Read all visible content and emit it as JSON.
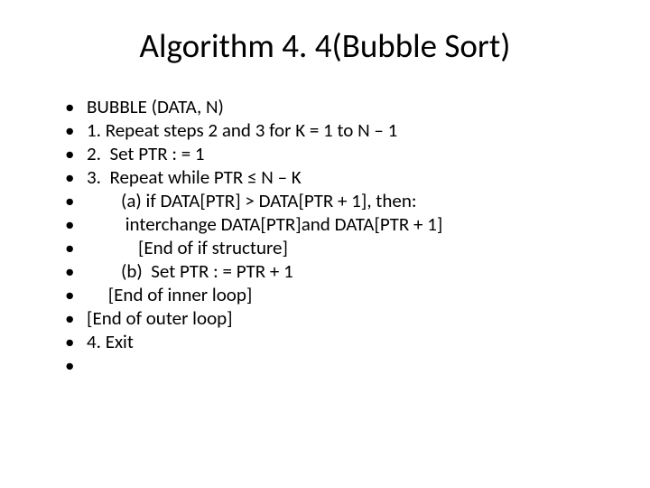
{
  "title": "Algorithm 4. 4(Bubble Sort)",
  "title_fontsize": 37,
  "body_fontsize": 21,
  "background_color": "#ffffff",
  "text_color": "#000000",
  "bullets": [
    "BUBBLE (DATA, N)",
    "1. Repeat steps 2 and 3 for K = 1 to N – 1",
    "2.  Set PTR : = 1",
    "3.  Repeat while PTR ≤ N – K",
    "        (a) if DATA[PTR] > DATA[PTR + 1], then:",
    "         interchange DATA[PTR]and DATA[PTR + 1]",
    "            [End of if structure]",
    "        (b)  Set PTR : = PTR + 1",
    "     [End of inner loop]",
    "[End of outer loop]",
    "4. Exit",
    ""
  ]
}
